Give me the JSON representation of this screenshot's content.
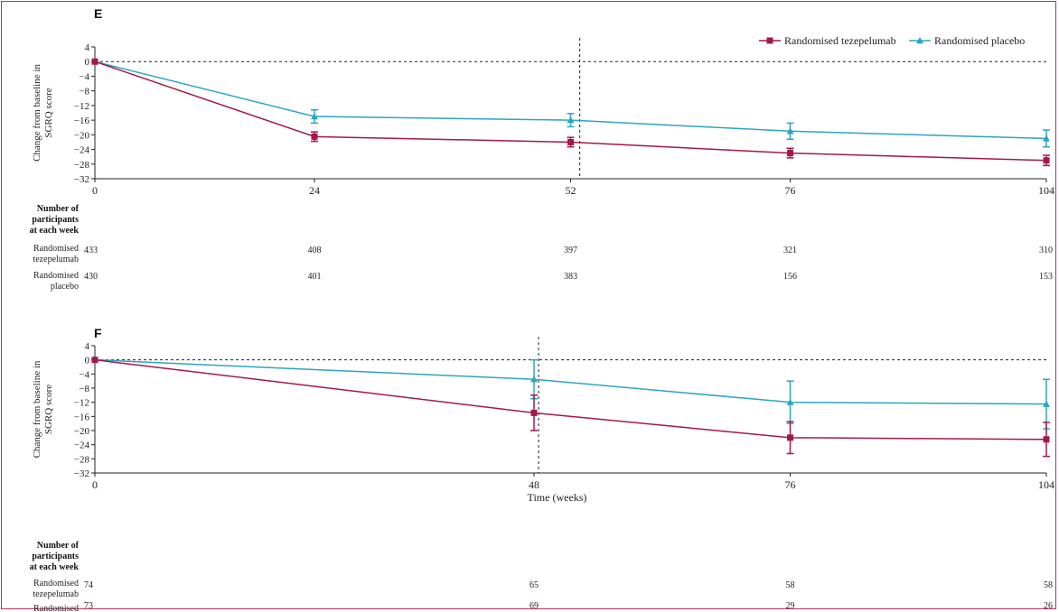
{
  "legend": {
    "tezepelumab": "Randomised tezepelumab",
    "placebo": "Randomised placebo"
  },
  "colors": {
    "tezepelumab": "#a3184a",
    "placebo": "#2aa6bd"
  },
  "number_table_title": [
    "Number of",
    "participants",
    "at each week"
  ],
  "row_labels": {
    "tezepelumab": [
      "Randomised",
      "tezepelumab"
    ],
    "placebo": [
      "Randomised",
      "placebo"
    ]
  },
  "chart_data": [
    {
      "panel": "E",
      "type": "line",
      "ylabel": [
        "Change from baseline in",
        "SGRQ score"
      ],
      "xlabel": "",
      "ylim": [
        -32,
        4
      ],
      "yticks": [
        4,
        0,
        -4,
        -8,
        -12,
        -16,
        -20,
        -24,
        -28,
        -32
      ],
      "xlim": [
        0,
        104
      ],
      "x": [
        0,
        24,
        52,
        76,
        104
      ],
      "reference_line_x": 53,
      "series": [
        {
          "name": "Randomised tezepelumab",
          "values": [
            0,
            -20.5,
            -22,
            -25,
            -27
          ],
          "err": [
            0,
            1.3,
            1.3,
            1.3,
            1.4
          ],
          "marker": "square"
        },
        {
          "name": "Randomised placebo",
          "values": [
            0,
            -15,
            -16,
            -19,
            -21
          ],
          "err": [
            0,
            1.8,
            1.8,
            2.2,
            2.3
          ],
          "marker": "triangle"
        }
      ],
      "participants": {
        "tezepelumab": [
          "433",
          "408",
          "397",
          "321",
          "310"
        ],
        "placebo": [
          "430",
          "401",
          "383",
          "156",
          "153"
        ]
      }
    },
    {
      "panel": "F",
      "type": "line",
      "ylabel": [
        "Change from baseline in",
        "SGRQ score"
      ],
      "xlabel": "Time (weeks)",
      "ylim": [
        -32,
        4
      ],
      "yticks": [
        4,
        0,
        -4,
        -8,
        -12,
        -16,
        -20,
        -24,
        -28,
        -32
      ],
      "xlim": [
        0,
        104
      ],
      "x": [
        0,
        48,
        76,
        104
      ],
      "reference_line_x": 48.5,
      "series": [
        {
          "name": "Randomised tezepelumab",
          "values": [
            0,
            -15,
            -22,
            -22.5
          ],
          "err": [
            0,
            5,
            4.5,
            4.8
          ],
          "marker": "square"
        },
        {
          "name": "Randomised placebo",
          "values": [
            0,
            -5.5,
            -12,
            -12.5
          ],
          "err": [
            0,
            5.5,
            6,
            7
          ],
          "marker": "triangle"
        }
      ],
      "participants": {
        "tezepelumab": [
          "74",
          "65",
          "58",
          "58"
        ],
        "placebo": [
          "73",
          "69",
          "29",
          "26"
        ]
      }
    }
  ]
}
